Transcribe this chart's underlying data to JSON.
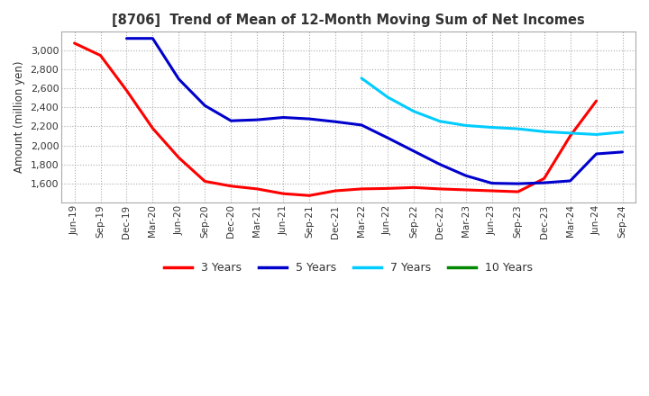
{
  "title": "[8706]  Trend of Mean of 12-Month Moving Sum of Net Incomes",
  "ylabel": "Amount (million yen)",
  "background_color": "#ffffff",
  "plot_bg_color": "#ffffff",
  "grid_color": "#999999",
  "x_labels": [
    "Jun-19",
    "Sep-19",
    "Dec-19",
    "Mar-20",
    "Jun-20",
    "Sep-20",
    "Dec-20",
    "Mar-21",
    "Jun-21",
    "Sep-21",
    "Dec-21",
    "Mar-22",
    "Jun-22",
    "Sep-22",
    "Dec-22",
    "Mar-23",
    "Jun-23",
    "Sep-23",
    "Dec-23",
    "Mar-24",
    "Jun-24",
    "Sep-24"
  ],
  "series": {
    "3 Years": {
      "color": "#ff0000",
      "data_x": [
        0,
        1,
        2,
        3,
        4,
        5,
        6,
        7,
        8,
        9,
        10,
        11,
        12,
        13,
        14,
        15,
        16,
        17,
        18,
        19,
        20
      ],
      "data_y": [
        3080,
        2950,
        2580,
        2180,
        1870,
        1620,
        1570,
        1540,
        1490,
        1470,
        1520,
        1540,
        1545,
        1555,
        1540,
        1530,
        1520,
        1510,
        1650,
        2100,
        2470
      ]
    },
    "5 Years": {
      "color": "#0000cc",
      "data_x": [
        2,
        3,
        4,
        5,
        6,
        7,
        8,
        9,
        10,
        11,
        12,
        13,
        14,
        15,
        16,
        17,
        18,
        19,
        20,
        21
      ],
      "data_y": [
        3130,
        3130,
        2700,
        2420,
        2260,
        2270,
        2295,
        2280,
        2250,
        2215,
        2080,
        1940,
        1800,
        1680,
        1600,
        1595,
        1605,
        1625,
        1910,
        1930
      ]
    },
    "7 Years": {
      "color": "#00ccff",
      "data_x": [
        11,
        12,
        13,
        14,
        15,
        16,
        17,
        18,
        19,
        20,
        21
      ],
      "data_y": [
        2710,
        2510,
        2360,
        2255,
        2210,
        2190,
        2175,
        2145,
        2130,
        2115,
        2140
      ]
    },
    "10 Years": {
      "color": "#008800",
      "data_x": [],
      "data_y": []
    }
  },
  "ylim": [
    1400,
    3200
  ],
  "yticks": [
    1600,
    1800,
    2000,
    2200,
    2400,
    2600,
    2800,
    3000
  ],
  "legend_items": [
    "3 Years",
    "5 Years",
    "7 Years",
    "10 Years"
  ],
  "legend_colors": [
    "#ff0000",
    "#0000cc",
    "#00ccff",
    "#008800"
  ],
  "title_color": "#333333",
  "tick_label_color": "#333333"
}
